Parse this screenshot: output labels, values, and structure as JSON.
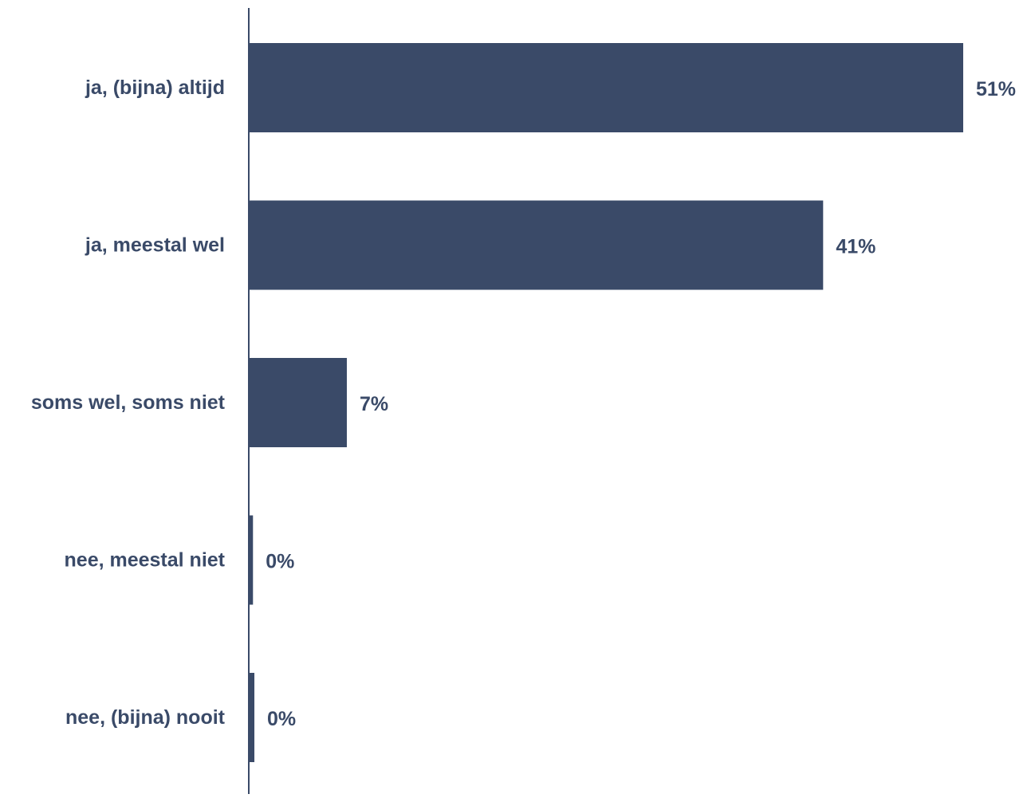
{
  "chart_data": {
    "type": "bar",
    "orientation": "horizontal",
    "categories": [
      "ja, (bijna) altijd",
      "ja, meestal wel",
      "soms wel, soms niet",
      "nee, meestal niet",
      "nee, (bijna) nooit"
    ],
    "values": [
      51,
      41,
      7,
      0.3,
      0.4
    ],
    "labels": [
      "51%",
      "41%",
      "7%",
      "0%",
      "0%"
    ],
    "unit": "%",
    "xlim": [
      0,
      51
    ],
    "grid": false,
    "legend": "none",
    "colors": {
      "bar": "#3a4a68",
      "text": "#3a4a68",
      "axis": "#3a4a68"
    }
  }
}
